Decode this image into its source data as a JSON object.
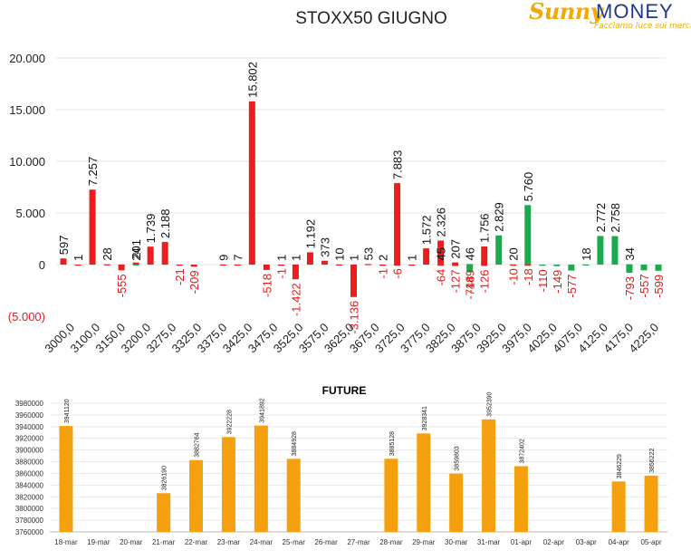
{
  "logo": {
    "brand_word": "Sunny",
    "brand_word2": "MONEY",
    "tagline": "Facciamo luce sui mercati"
  },
  "colors": {
    "positive_bar": "#ee1c1c",
    "negative_bar": "#1aab4f",
    "negative_label": "#e01b1b",
    "future_bar": "#f5a00f"
  },
  "chart_data": [
    {
      "type": "bar",
      "title": "STOXX50 GIUGNO",
      "ylim": [
        -5000,
        20000
      ],
      "y_ticks": [
        {
          "value": 20000,
          "label": "20.000"
        },
        {
          "value": 15000,
          "label": "15.000"
        },
        {
          "value": 10000,
          "label": "10.000"
        },
        {
          "value": 5000,
          "label": "5.000"
        },
        {
          "value": 0,
          "label": "0"
        },
        {
          "value": -5000,
          "label": "(5.000)"
        }
      ],
      "x_tick_labels": [
        "3000,0",
        "3100,0",
        "3150,0",
        "3200,0",
        "3275,0",
        "3325,0",
        "3375,0",
        "3425,0",
        "3475,0",
        "3525,0",
        "3575,0",
        "3625,0",
        "3675,0",
        "3725,0",
        "3775,0",
        "3825,0",
        "3875,0",
        "3925,0",
        "3975,0",
        "4025,0",
        "4075,0",
        "4125,0",
        "4175,0",
        "4225,0"
      ],
      "grid": true,
      "series": [
        {
          "name": "",
          "color": "#ee1c1c",
          "values": [
            597,
            1,
            7257,
            28,
            0,
            201,
            1739,
            2188,
            0,
            0,
            0,
            9,
            7,
            15802,
            0,
            1,
            1,
            1192,
            373,
            10,
            1,
            53,
            2,
            7883,
            1,
            1572,
            2326,
            207,
            46,
            1756,
            0,
            0,
            0,
            0,
            0,
            0,
            0,
            0,
            0,
            0,
            0,
            0
          ],
          "labels": [
            "597",
            "1",
            "7.257",
            "28",
            "",
            "201",
            "1.739",
            "2.188",
            "",
            "",
            "",
            "9",
            "7",
            "15.802",
            "",
            "1",
            "1",
            "1.192",
            "373",
            "10",
            "1",
            "53",
            "2",
            "7.883",
            "1",
            "1.572",
            "2.326",
            "207",
            "46",
            "1.756",
            "",
            "",
            "",
            "",
            "",
            "",
            "",
            "",
            "",
            "",
            "",
            ""
          ]
        },
        {
          "name": "",
          "color": "#1aab4f",
          "values": [
            0,
            0,
            0,
            0,
            0,
            24,
            0,
            0,
            0,
            0,
            0,
            0,
            0,
            0,
            0,
            0,
            0,
            0,
            0,
            0,
            0,
            0,
            0,
            0,
            0,
            0,
            45,
            0,
            0,
            0,
            2829,
            20,
            5760,
            0,
            0,
            0,
            18,
            2772,
            2758,
            34,
            0,
            0
          ],
          "labels": [
            "",
            "",
            "",
            "",
            "",
            "24",
            "",
            "",
            "",
            "",
            "",
            "",
            "",
            "",
            "",
            "",
            "",
            "",
            "",
            "",
            "",
            "",
            "",
            "",
            "",
            "",
            "45",
            "",
            "",
            "",
            "2.829",
            "20",
            "5.760",
            "",
            "",
            "",
            "18",
            "2.772",
            "2.758",
            "34",
            "",
            ""
          ]
        },
        {
          "name": "",
          "color": "#ee1c1c",
          "values": [
            0,
            0,
            0,
            0,
            -555,
            0,
            0,
            0,
            -21,
            -209,
            0,
            0,
            0,
            0,
            -518,
            -1,
            -1422,
            0,
            0,
            0,
            -3136,
            0,
            -1,
            -6,
            0,
            0,
            -64,
            -127,
            -149,
            -126,
            0,
            -10,
            -18,
            0,
            0,
            0,
            0,
            0,
            0,
            0,
            0,
            0
          ],
          "labels": [
            "",
            "",
            "",
            "",
            "-555",
            "",
            "",
            "",
            "-21",
            "-209",
            "",
            "",
            "",
            "",
            "-518",
            "-1",
            "-1.422",
            "",
            "",
            "",
            "-3.136",
            "",
            "-1",
            "-6",
            "",
            "",
            "-64",
            "-127",
            "-149",
            "-126",
            "",
            "-10",
            "-18",
            "",
            "",
            "",
            "",
            "",
            "",
            "",
            "",
            ""
          ]
        },
        {
          "name": "",
          "color": "#1aab4f",
          "values": [
            0,
            0,
            0,
            0,
            0,
            0,
            0,
            0,
            0,
            0,
            0,
            0,
            0,
            0,
            0,
            0,
            0,
            0,
            0,
            0,
            0,
            0,
            0,
            0,
            0,
            0,
            0,
            0,
            -748,
            0,
            0,
            0,
            0,
            -110,
            -149,
            -577,
            0,
            0,
            0,
            -793,
            -557,
            -599
          ],
          "labels": [
            "",
            "",
            "",
            "",
            "",
            "",
            "",
            "",
            "",
            "",
            "",
            "",
            "",
            "",
            "",
            "",
            "",
            "",
            "",
            "",
            "",
            "",
            "",
            "",
            "",
            "",
            "",
            "",
            "-748",
            "",
            "",
            "",
            "",
            "-110",
            "-149",
            "-577",
            "",
            "",
            "",
            "-793",
            "-557",
            "-599"
          ]
        }
      ]
    },
    {
      "type": "bar",
      "title": "FUTURE",
      "categories": [
        "18-mar",
        "19-mar",
        "20-mar",
        "21-mar",
        "22-mar",
        "23-mar",
        "24-mar",
        "25-mar",
        "26-mar",
        "27-mar",
        "28-mar",
        "29-mar",
        "30-mar",
        "31-mar",
        "01-apr",
        "02-apr",
        "03-apr",
        "04-apr",
        "05-apr"
      ],
      "values": [
        3941120,
        null,
        null,
        3826190,
        3882764,
        3922228,
        3941892,
        3884928,
        null,
        null,
        3885128,
        3928341,
        3859803,
        3952390,
        3872402,
        null,
        null,
        3846229,
        3856222
      ],
      "labels": [
        "3941120",
        "",
        "",
        "3826190",
        "3882764",
        "3922228",
        "3941892",
        "3884928",
        "",
        "",
        "3885128",
        "3928341",
        "3859803",
        "3952390",
        "3872402",
        "",
        "",
        "3846229",
        "3856222"
      ],
      "ylim": [
        3760000,
        3980000
      ],
      "y_tick_labels": [
        "3980000",
        "3960000",
        "3940000",
        "3920000",
        "3900000",
        "3880000",
        "3860000",
        "3840000",
        "3820000",
        "3800000",
        "3780000",
        "3760000"
      ],
      "grid": true
    }
  ]
}
